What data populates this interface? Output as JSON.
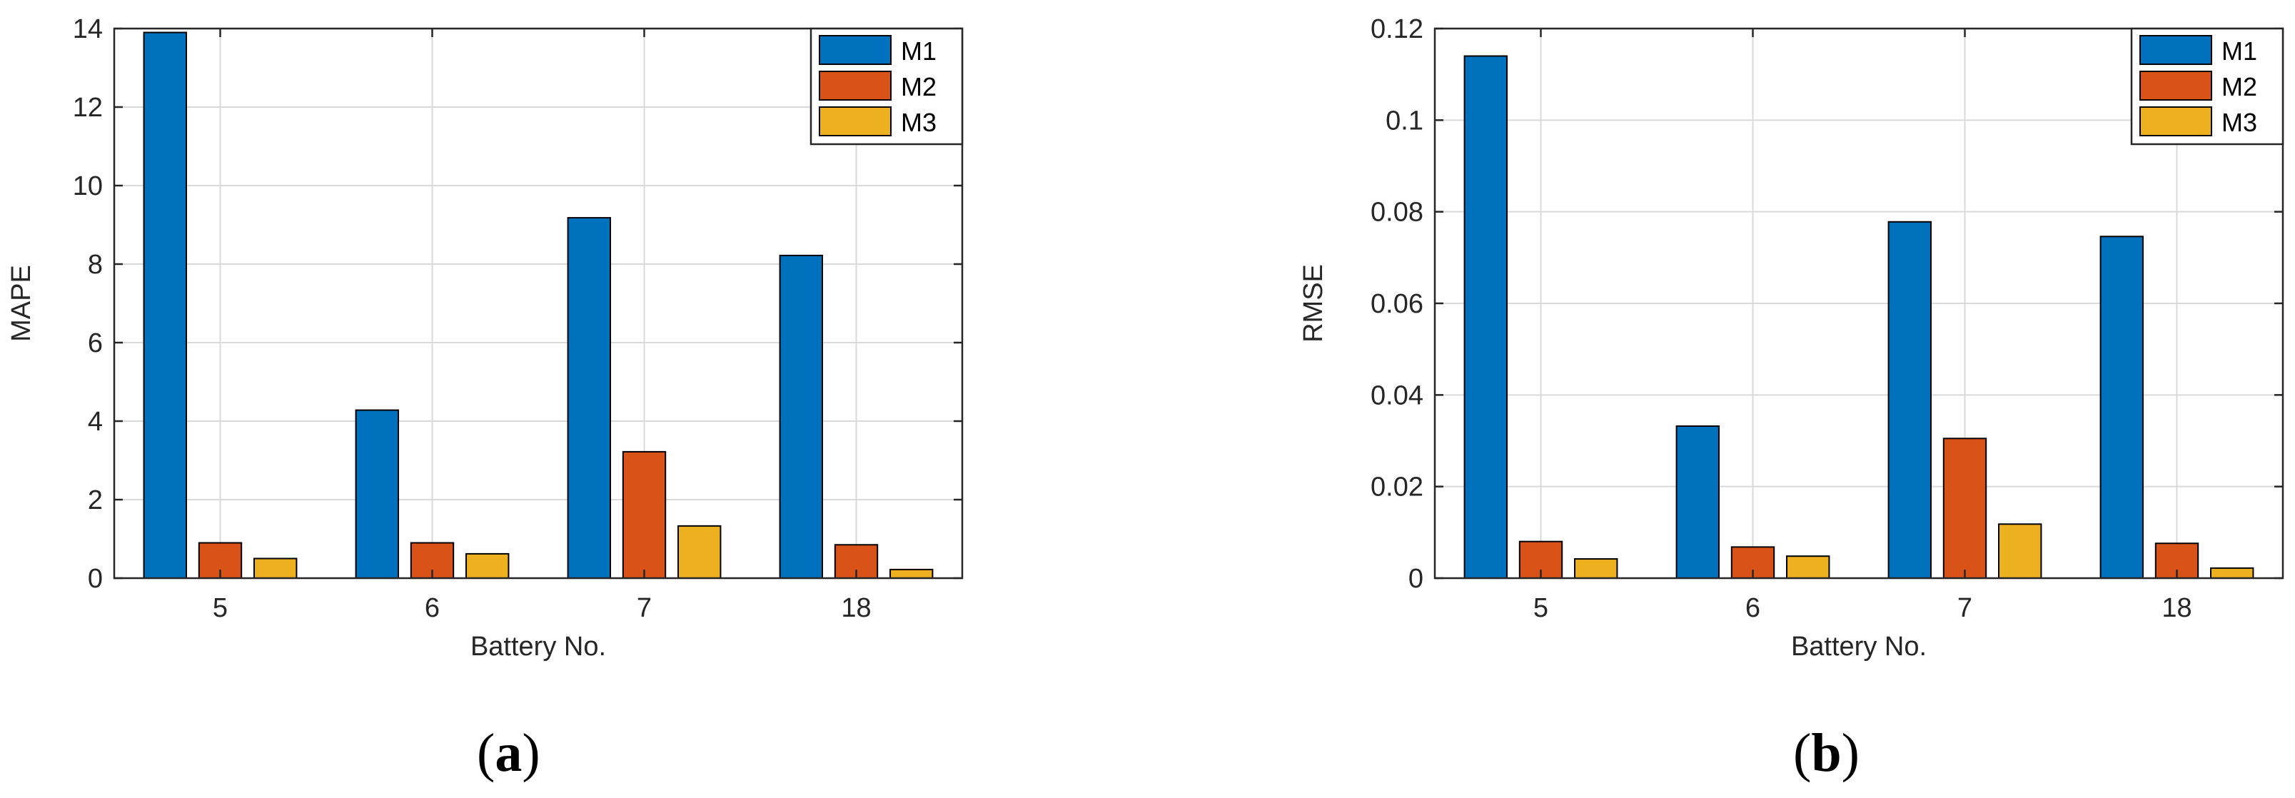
{
  "colors": {
    "M1": "#0072BD",
    "M2": "#D95319",
    "M3": "#EDB120"
  },
  "captions": [
    {
      "open": "(",
      "letter": "a",
      "close": ")"
    },
    {
      "open": "(",
      "letter": "b",
      "close": ")"
    }
  ],
  "chart_data": [
    {
      "type": "bar",
      "categories": [
        "5",
        "6",
        "7",
        "18"
      ],
      "series": [
        {
          "name": "M1",
          "values": [
            13.9,
            4.28,
            9.18,
            8.22
          ]
        },
        {
          "name": "M2",
          "values": [
            0.9,
            0.9,
            3.22,
            0.85
          ]
        },
        {
          "name": "M3",
          "values": [
            0.5,
            0.62,
            1.33,
            0.22
          ]
        }
      ],
      "xlabel": "Battery No.",
      "ylabel": "MAPE",
      "ylim": [
        0,
        14
      ],
      "yticks": [
        0,
        2,
        4,
        6,
        8,
        10,
        12,
        14
      ],
      "ytick_labels": [
        "0",
        "2",
        "4",
        "6",
        "8",
        "10",
        "12",
        "14"
      ],
      "grid": true,
      "legend": "top-right"
    },
    {
      "type": "bar",
      "categories": [
        "5",
        "6",
        "7",
        "18"
      ],
      "series": [
        {
          "name": "M1",
          "values": [
            0.114,
            0.0332,
            0.0778,
            0.0746
          ]
        },
        {
          "name": "M2",
          "values": [
            0.008,
            0.0068,
            0.0305,
            0.0076
          ]
        },
        {
          "name": "M3",
          "values": [
            0.0042,
            0.0048,
            0.0118,
            0.0022
          ]
        }
      ],
      "xlabel": "Battery No.",
      "ylabel": "RMSE",
      "ylim": [
        0,
        0.12
      ],
      "yticks": [
        0,
        0.02,
        0.04,
        0.06,
        0.08,
        0.1,
        0.12
      ],
      "ytick_labels": [
        "0",
        "0.02",
        "0.04",
        "0.06",
        "0.08",
        "0.1",
        "0.12"
      ],
      "grid": true,
      "legend": "top-right"
    }
  ]
}
